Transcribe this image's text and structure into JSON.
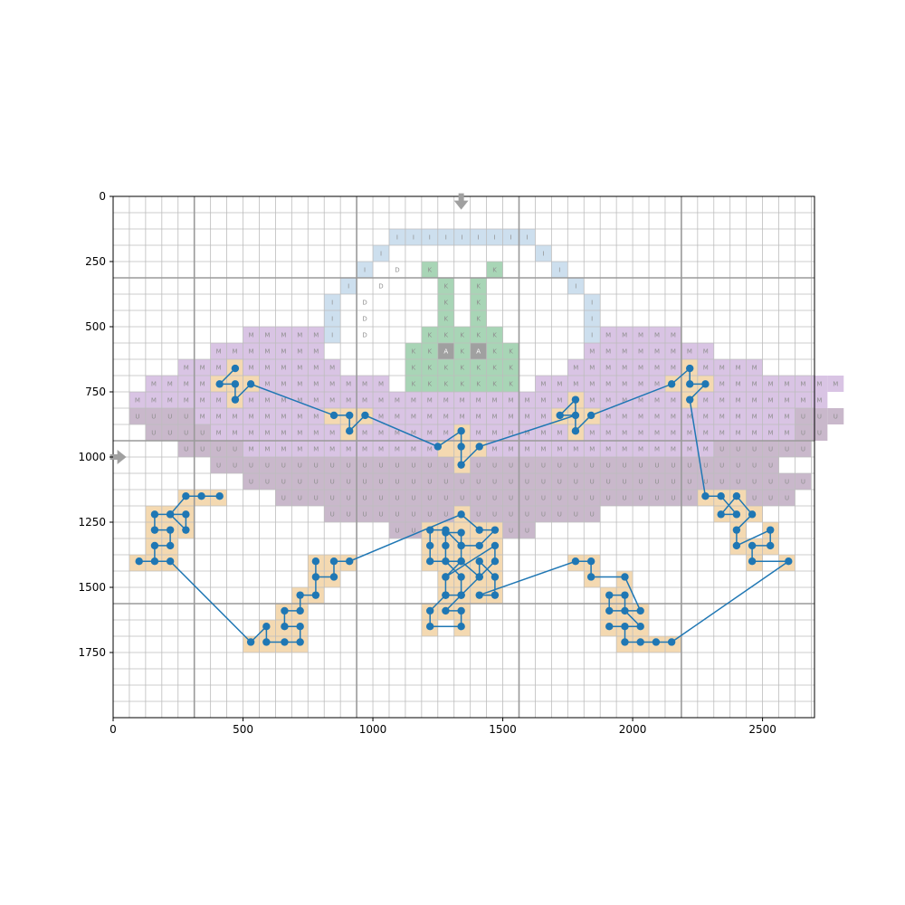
{
  "chart_data": {
    "type": "scatter",
    "title": "",
    "xlabel": "",
    "ylabel": "",
    "xlim": [
      0,
      2700
    ],
    "ylim": [
      2000,
      0
    ],
    "x_ticks": [
      0,
      500,
      1000,
      1500,
      2000,
      2500
    ],
    "x_tick_labels": [
      "0",
      "500",
      "1000",
      "1500",
      "2000",
      "2500"
    ],
    "y_ticks": [
      0,
      250,
      500,
      750,
      1000,
      1250,
      1500,
      1750
    ],
    "y_tick_labels": [
      "0",
      "250",
      "500",
      "750",
      "1000",
      "1250",
      "1500",
      "1750"
    ],
    "grid": true,
    "cell_size": 62.5,
    "major_grid_every": 10,
    "major_grid_origin": 5,
    "cell_colors": {
      "I": "#cddfee",
      "D": "#ffffff",
      "K": "#a8d5b6",
      "A": "#a0a0a0",
      "M": "#d9c4e4",
      "U": "#c9b8cb",
      "P": "#f4d9b1"
    },
    "marker_color": "#1f77b4",
    "arrow_color": "#a0a0a0",
    "arrows": [
      {
        "direction": "down",
        "x": 1340,
        "y": 30
      },
      {
        "direction": "right",
        "x": 30,
        "y": 1000
      }
    ],
    "cell_rows": [
      {
        "row": 2,
        "runs": [
          [
            17,
            "IIIIIIIII"
          ]
        ]
      },
      {
        "row": 3,
        "runs": [
          [
            16,
            "I"
          ],
          [
            26,
            "I"
          ]
        ]
      },
      {
        "row": 4,
        "runs": [
          [
            15,
            "I"
          ],
          [
            17,
            "D"
          ],
          [
            19,
            "K"
          ],
          [
            23,
            "K"
          ],
          [
            27,
            "I"
          ]
        ]
      },
      {
        "row": 5,
        "runs": [
          [
            14,
            "I"
          ],
          [
            16,
            "D"
          ],
          [
            20,
            "K"
          ],
          [
            22,
            "K"
          ],
          [
            28,
            "I"
          ]
        ]
      },
      {
        "row": 6,
        "runs": [
          [
            13,
            "I"
          ],
          [
            15,
            "D"
          ],
          [
            20,
            "K"
          ],
          [
            22,
            "K"
          ],
          [
            29,
            "I"
          ]
        ]
      },
      {
        "row": 7,
        "runs": [
          [
            13,
            "I"
          ],
          [
            15,
            "D"
          ],
          [
            20,
            "K"
          ],
          [
            22,
            "K"
          ],
          [
            29,
            "I"
          ]
        ]
      },
      {
        "row": 8,
        "runs": [
          [
            8,
            "MMMMM"
          ],
          [
            13,
            "I"
          ],
          [
            15,
            "D"
          ],
          [
            19,
            "KKKKK"
          ],
          [
            29,
            "I"
          ],
          [
            30,
            "MMMMM"
          ]
        ]
      },
      {
        "row": 9,
        "runs": [
          [
            6,
            "MMMMMMM"
          ],
          [
            18,
            "KKAKAKK"
          ],
          [
            29,
            "MMMMMMMM"
          ]
        ]
      },
      {
        "row": 10,
        "runs": [
          [
            4,
            "MMMMMMMMMM"
          ],
          [
            18,
            "KKKKKKK"
          ],
          [
            28,
            "MMMMMMMMMMMM"
          ]
        ]
      },
      {
        "row": 11,
        "runs": [
          [
            2,
            "MMMMMMMMMMMMMMM"
          ],
          [
            18,
            "KKKKKKK"
          ],
          [
            26,
            "MMMMMMMMMMMMMMMMMMM"
          ]
        ]
      },
      {
        "row": 12,
        "runs": [
          [
            1,
            "MMMMMMMMMMMMMMMMMMMMMMMMMMMMMMMMMMMMMMMMMMM"
          ]
        ]
      },
      {
        "row": 13,
        "runs": [
          [
            1,
            "UUUUMMMMMMMMMMMMMMMMMMMMMMMMMMMMMMMMMMMMMUUU"
          ]
        ]
      },
      {
        "row": 14,
        "runs": [
          [
            2,
            "UUUUMMMMMMMMMMMMMMMMMMMMMMMMMMMMMMMMMMMMUU"
          ]
        ]
      },
      {
        "row": 15,
        "runs": [
          [
            4,
            "UUUUMMMMMMMMMMMMMMMMMMMMMMMMMMMMMUUUUUU"
          ]
        ]
      },
      {
        "row": 16,
        "runs": [
          [
            6,
            "UUUUUUUUUUUUUUUUUUUUUUUUUUUUUUUUUUU"
          ]
        ]
      },
      {
        "row": 17,
        "runs": [
          [
            8,
            "UUUUUUUUUUUUUUUUUUUUUUUUUUUUUUUUUUU"
          ]
        ]
      },
      {
        "row": 18,
        "runs": [
          [
            10,
            "UUUUUUUUUUUUUUUUUUUUUUUUUUUUUUUU"
          ]
        ]
      },
      {
        "row": 19,
        "runs": [
          [
            13,
            "UUUUUUUUUUUUUUUUU"
          ]
        ]
      },
      {
        "row": 20,
        "runs": [
          [
            17,
            "UUUUUUUUU"
          ]
        ]
      }
    ],
    "series": [
      {
        "x": [
          470,
          410,
          470,
          470,
          530,
          850,
          910,
          910,
          970,
          1250,
          1340,
          1340,
          1340,
          1410,
          1780,
          1720,
          1780,
          1780,
          1840,
          2150,
          2220,
          2220,
          2280,
          2220,
          2280,
          2340,
          2400,
          2340,
          2400,
          2460,
          2400,
          2400,
          2530,
          2530,
          2460,
          2460,
          2600,
          2150,
          2090,
          2030,
          1970,
          1970,
          1910,
          2030,
          1970,
          1970,
          1910,
          1910,
          2030,
          1970,
          1840,
          1840,
          1780,
          1410,
          1470,
          1470,
          1410,
          1410,
          1340,
          1280,
          1280,
          1340,
          1410,
          1470,
          1470,
          1280,
          1280,
          1220,
          1220,
          1340,
          1340,
          1280,
          1340,
          1340,
          1280,
          1280,
          1280,
          1340,
          1340,
          1340,
          1220,
          1220,
          1220,
          1280,
          1340,
          1410,
          1470,
          1410,
          1340,
          910,
          850,
          850,
          780,
          780,
          780,
          720,
          720,
          660,
          660,
          720,
          720,
          660,
          590,
          590,
          530,
          220,
          100,
          160,
          160,
          220,
          220,
          160,
          160,
          220,
          280,
          280,
          220,
          280,
          340,
          410
        ],
        "y": [
          660,
          720,
          720,
          780,
          720,
          840,
          840,
          900,
          840,
          960,
          900,
          960,
          1030,
          960,
          840,
          840,
          780,
          900,
          840,
          720,
          660,
          720,
          720,
          780,
          1150,
          1150,
          1220,
          1220,
          1150,
          1220,
          1280,
          1340,
          1280,
          1340,
          1340,
          1400,
          1400,
          1710,
          1710,
          1710,
          1710,
          1650,
          1650,
          1650,
          1590,
          1530,
          1530,
          1590,
          1590,
          1460,
          1460,
          1400,
          1400,
          1530,
          1530,
          1460,
          1400,
          1460,
          1400,
          1460,
          1530,
          1530,
          1460,
          1400,
          1340,
          1460,
          1530,
          1590,
          1650,
          1650,
          1590,
          1590,
          1530,
          1460,
          1400,
          1340,
          1290,
          1290,
          1340,
          1400,
          1400,
          1340,
          1280,
          1280,
          1340,
          1340,
          1280,
          1280,
          1220,
          1400,
          1400,
          1460,
          1460,
          1400,
          1530,
          1530,
          1590,
          1590,
          1650,
          1650,
          1710,
          1710,
          1710,
          1650,
          1710,
          1400,
          1400,
          1400,
          1340,
          1340,
          1280,
          1280,
          1220,
          1220,
          1220,
          1280,
          1220,
          1150,
          1150,
          1150
        ]
      }
    ]
  }
}
